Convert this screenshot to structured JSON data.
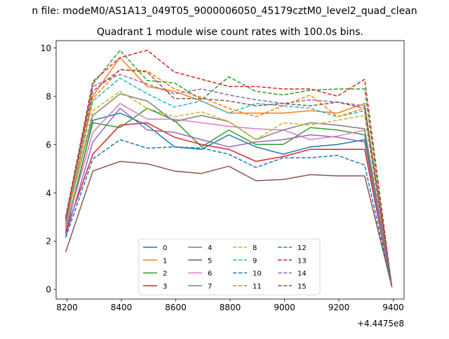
{
  "figure": {
    "suptitle": "n file: modeM0/AS1A13_049T05_9000006050_45179cztM0_level2_quad_clean",
    "title": "Quadrant 1 module wise count rates with 100.0s bins.",
    "offset_label": "+4.4475e8"
  },
  "chart_data": {
    "type": "line",
    "title": "Quadrant 1 module wise count rates with 100.0s bins.",
    "xlabel": "",
    "ylabel": "",
    "x_offset": 444750000,
    "xlim": [
      8160,
      9440
    ],
    "ylim": [
      -0.4,
      10.3
    ],
    "xticks": [
      8200,
      8400,
      8600,
      8800,
      9000,
      9200,
      9400
    ],
    "xtick_labels": [
      "8200",
      "8400",
      "8600",
      "8800",
      "9000",
      "9200",
      "9400"
    ],
    "yticks": [
      0,
      2,
      4,
      6,
      8,
      10
    ],
    "ytick_labels": [
      "0",
      "2",
      "4",
      "6",
      "8",
      "10"
    ],
    "grid": false,
    "legend": "bottom-center, 4 columns",
    "x": [
      8195,
      8295,
      8395,
      8495,
      8595,
      8695,
      8795,
      8895,
      8995,
      9095,
      9195,
      9295,
      9395
    ],
    "series": [
      {
        "name": "0",
        "color": "#1f77b4",
        "dash": "solid",
        "values": [
          2.3,
          7.0,
          7.3,
          6.8,
          5.9,
          5.8,
          6.4,
          5.9,
          5.6,
          5.9,
          6.0,
          6.2,
          0.1
        ]
      },
      {
        "name": "1",
        "color": "#ff7f0e",
        "dash": "solid",
        "values": [
          2.6,
          8.0,
          9.6,
          8.4,
          8.2,
          7.8,
          7.3,
          7.3,
          7.3,
          7.4,
          7.3,
          7.7,
          0.1
        ]
      },
      {
        "name": "2",
        "color": "#2ca02c",
        "dash": "solid",
        "values": [
          2.5,
          6.9,
          6.7,
          7.5,
          7.0,
          5.9,
          6.6,
          6.0,
          6.0,
          6.7,
          6.6,
          6.4,
          0.1
        ]
      },
      {
        "name": "3",
        "color": "#d62728",
        "dash": "solid",
        "values": [
          2.4,
          5.6,
          6.8,
          6.9,
          6.3,
          6.0,
          5.8,
          5.3,
          5.5,
          5.8,
          5.8,
          5.8,
          0.1
        ]
      },
      {
        "name": "4",
        "color": "#9467bd",
        "dash": "solid",
        "values": [
          2.2,
          6.1,
          7.5,
          6.6,
          6.5,
          6.2,
          5.9,
          6.1,
          6.2,
          6.4,
          6.3,
          6.1,
          0.1
        ]
      },
      {
        "name": "5",
        "color": "#8c564b",
        "dash": "solid",
        "values": [
          1.55,
          4.9,
          5.3,
          5.2,
          4.9,
          4.8,
          5.1,
          4.5,
          4.55,
          4.75,
          4.7,
          4.7,
          0.1
        ]
      },
      {
        "name": "6",
        "color": "#e377c2",
        "dash": "solid",
        "values": [
          2.5,
          6.5,
          7.7,
          7.05,
          7.05,
          6.9,
          6.75,
          6.65,
          6.6,
          6.2,
          6.35,
          6.6,
          0.1
        ]
      },
      {
        "name": "7",
        "color": "#7f7f7f",
        "dash": "solid",
        "values": [
          2.8,
          7.2,
          8.1,
          7.8,
          6.95,
          7.2,
          6.95,
          6.2,
          6.6,
          6.9,
          6.8,
          6.65,
          0.1
        ]
      },
      {
        "name": "8",
        "color": "#bcbd22",
        "dash": "dashed",
        "values": [
          2.7,
          7.4,
          8.2,
          7.5,
          7.15,
          7.35,
          6.95,
          6.2,
          6.9,
          6.8,
          7.0,
          7.2,
          0.1
        ]
      },
      {
        "name": "9",
        "color": "#17becf",
        "dash": "dashed",
        "values": [
          2.7,
          7.8,
          8.75,
          8.1,
          7.55,
          7.8,
          7.3,
          7.7,
          7.6,
          7.5,
          7.15,
          7.4,
          0.1
        ]
      },
      {
        "name": "10",
        "color": "#1f77b4",
        "dash": "dashed",
        "values": [
          2.15,
          5.4,
          6.2,
          5.85,
          5.9,
          5.85,
          5.6,
          5.05,
          5.45,
          5.45,
          5.55,
          5.15,
          0.1
        ]
      },
      {
        "name": "11",
        "color": "#ff7f0e",
        "dash": "dashed",
        "values": [
          2.6,
          7.9,
          9.1,
          9.05,
          8.3,
          7.95,
          7.5,
          7.15,
          7.6,
          8.05,
          7.15,
          7.5,
          0.1
        ]
      },
      {
        "name": "12",
        "color": "#2ca02c",
        "dash": "dashed",
        "values": [
          2.9,
          8.5,
          9.9,
          8.65,
          8.55,
          7.85,
          8.8,
          8.2,
          8.05,
          8.25,
          8.3,
          8.3,
          0.1
        ]
      },
      {
        "name": "13",
        "color": "#d62728",
        "dash": "dashed",
        "values": [
          3.0,
          8.6,
          9.6,
          9.9,
          9.0,
          8.7,
          8.4,
          8.4,
          8.3,
          8.3,
          8.0,
          8.7,
          0.1
        ]
      },
      {
        "name": "14",
        "color": "#9467bd",
        "dash": "dashed",
        "values": [
          2.8,
          8.4,
          8.9,
          8.5,
          8.1,
          8.3,
          8.05,
          7.85,
          7.7,
          7.85,
          7.75,
          7.6,
          0.1
        ]
      },
      {
        "name": "15",
        "color": "#8c564b",
        "dash": "dashed",
        "values": [
          2.9,
          8.2,
          9.1,
          9.0,
          7.9,
          7.9,
          7.8,
          7.6,
          7.7,
          7.6,
          7.75,
          7.5,
          0.1
        ]
      }
    ]
  }
}
